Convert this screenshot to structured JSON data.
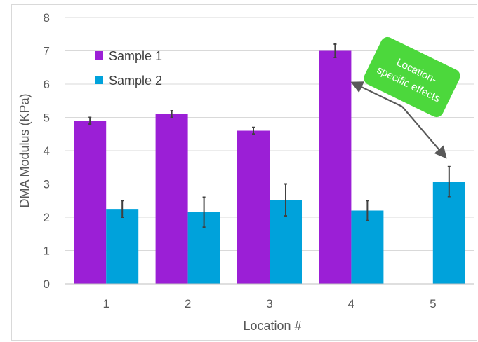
{
  "chart_data": {
    "type": "bar",
    "title": "",
    "xlabel": "Location #",
    "ylabel": "DMA Modulus (KPa)",
    "categories": [
      "1",
      "2",
      "3",
      "4",
      "5"
    ],
    "ylim": [
      0,
      8
    ],
    "yticks": [
      0,
      1,
      2,
      3,
      4,
      5,
      6,
      7,
      8
    ],
    "grid": true,
    "legend": "top-left",
    "series": [
      {
        "name": "Sample 1",
        "color": "#9b1fd6",
        "values": [
          4.9,
          5.1,
          4.6,
          7.0,
          null
        ],
        "errors": [
          0.1,
          0.1,
          0.1,
          0.2,
          null
        ]
      },
      {
        "name": "Sample 2",
        "color": "#00a2db",
        "values": [
          2.25,
          2.15,
          2.52,
          2.2,
          3.07
        ],
        "errors": [
          0.25,
          0.45,
          0.48,
          0.3,
          0.45
        ]
      }
    ],
    "annotation": {
      "text_lines": [
        "Location-",
        "specific effects"
      ],
      "color": "#4cd83c",
      "arrow_color": "#595959",
      "targets": [
        {
          "category": "4",
          "series": "Sample 1"
        },
        {
          "category": "5",
          "series": "Sample 2"
        }
      ]
    }
  }
}
